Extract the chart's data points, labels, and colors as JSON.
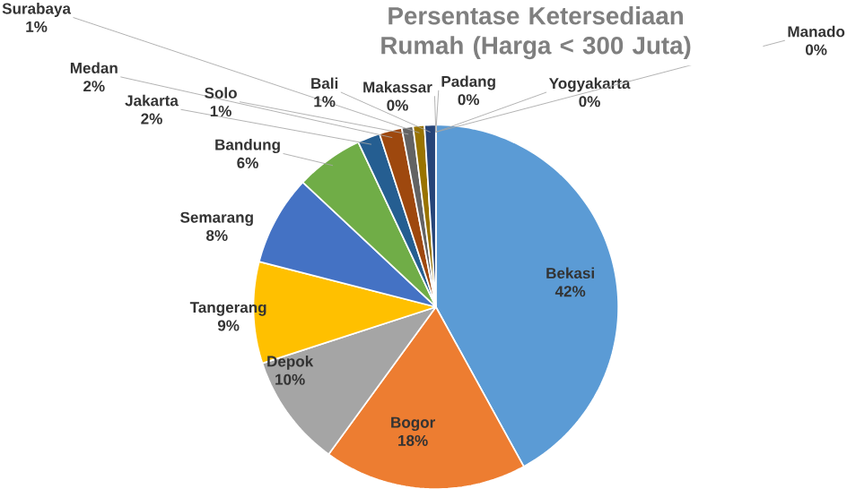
{
  "chart_data": {
    "type": "pie",
    "title": "Persentase Ketersediaan Rumah (Harga < 300 Juta)",
    "categories": [
      "Bekasi",
      "Bogor",
      "Depok",
      "Tangerang",
      "Semarang",
      "Bandung",
      "Jakarta",
      "Medan",
      "Solo",
      "Surabaya",
      "Bali",
      "Makassar",
      "Padang",
      "Yogyakarta",
      "Manado"
    ],
    "values": [
      42,
      18,
      10,
      9,
      8,
      6,
      2,
      2,
      1,
      1,
      1,
      0,
      0,
      0,
      0
    ],
    "value_labels": [
      "42%",
      "18%",
      "10%",
      "9%",
      "8%",
      "6%",
      "2%",
      "2%",
      "1%",
      "1%",
      "1%",
      "0%",
      "0%",
      "0%",
      "0%"
    ],
    "colors": [
      "#5b9bd5",
      "#ed7d31",
      "#a5a5a5",
      "#ffc000",
      "#4472c4",
      "#70ad47",
      "#255e91",
      "#9e480e",
      "#636363",
      "#997300",
      "#264478",
      "#43682b",
      "#7cafdd",
      "#f1975a",
      "#b7b7b7"
    ]
  }
}
